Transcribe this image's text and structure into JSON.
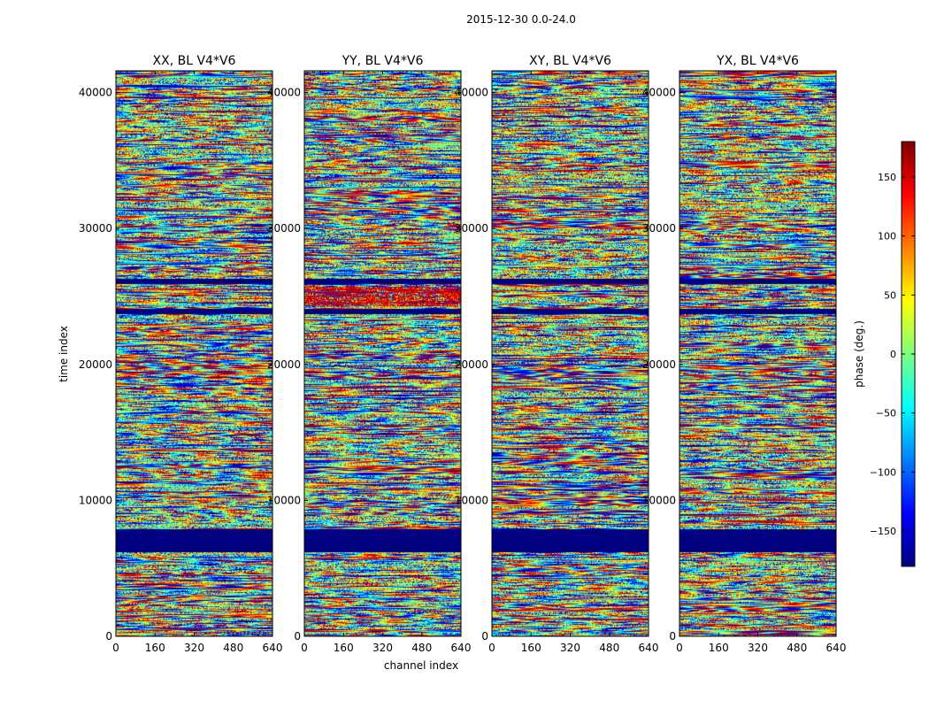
{
  "figure_title": "2015-12-30 0.0-24.0",
  "chart_data": {
    "type": "heatmap",
    "ylabel": "time index",
    "xlabel": "channel index",
    "xlim": [
      0,
      640
    ],
    "ylim": [
      0,
      41600
    ],
    "x_ticks": [
      0,
      160,
      320,
      480,
      640
    ],
    "y_ticks": [
      0,
      10000,
      20000,
      30000,
      40000
    ],
    "panels": [
      {
        "title": "XX, BL V4*V6",
        "seed": 11,
        "red_block": false
      },
      {
        "title": "YY, BL V4*V6",
        "seed": 23,
        "red_block": true
      },
      {
        "title": "XY, BL V4*V6",
        "seed": 37,
        "red_block": false
      },
      {
        "title": "YX, BL V4*V6",
        "seed": 53,
        "red_block": false
      }
    ],
    "masked_time_ranges": [
      [
        6200,
        7900
      ],
      [
        23700,
        24100
      ],
      [
        25900,
        26300
      ]
    ],
    "colorbar": {
      "label": "phase (deg.)",
      "range": [
        -180,
        180
      ],
      "ticks": [
        -150,
        -100,
        -50,
        0,
        50,
        100,
        150
      ],
      "colormap": "jet",
      "stops": [
        "#00007f",
        "#0000ff",
        "#007fff",
        "#00ffff",
        "#7fff7f",
        "#ffff00",
        "#ff7f00",
        "#ff0000",
        "#7f0000"
      ]
    }
  }
}
